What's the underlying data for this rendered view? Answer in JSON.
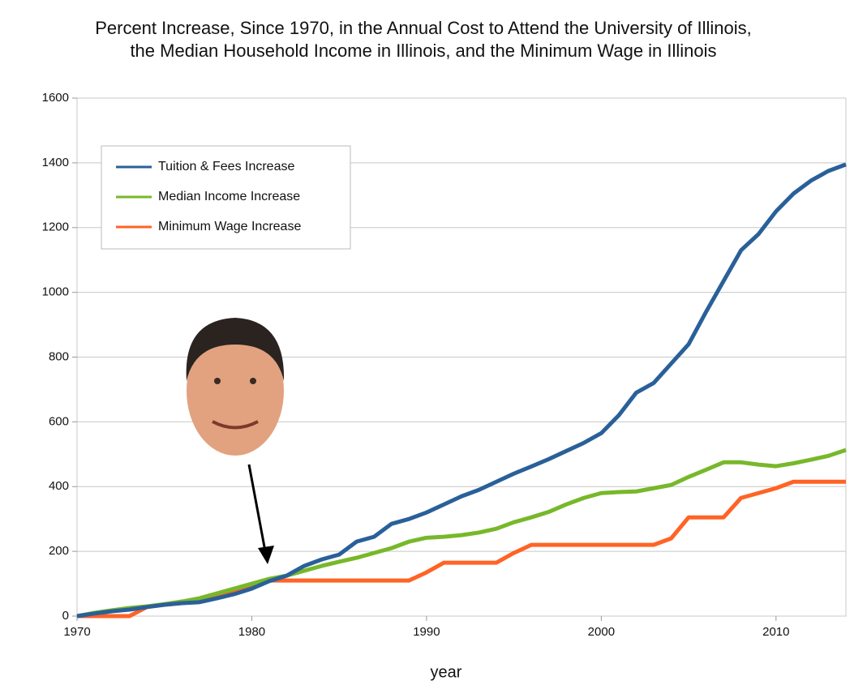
{
  "chart_data": {
    "type": "line",
    "title": [
      "Percent Increase, Since 1970, in the Annual Cost to Attend the University of Illinois,",
      "the Median Household Income in Illinois, and the Minimum Wage in Illinois"
    ],
    "x_label": "year",
    "x": [
      1970,
      1971,
      1972,
      1973,
      1974,
      1975,
      1976,
      1977,
      1978,
      1979,
      1980,
      1981,
      1982,
      1983,
      1984,
      1985,
      1986,
      1987,
      1988,
      1989,
      1990,
      1991,
      1992,
      1993,
      1994,
      1995,
      1996,
      1997,
      1998,
      1999,
      2000,
      2001,
      2002,
      2003,
      2004,
      2005,
      2006,
      2007,
      2008,
      2009,
      2010,
      2011,
      2012,
      2013,
      2014
    ],
    "xlim": [
      1970,
      2014
    ],
    "xticks": [
      1970,
      1980,
      1990,
      2000,
      2010
    ],
    "ylim": [
      0,
      1600
    ],
    "yticks": [
      0,
      200,
      400,
      600,
      800,
      1000,
      1200,
      1400,
      1600
    ],
    "grid": true,
    "legend": "upper-left",
    "series": [
      {
        "name": "Tuition & Fees Increase",
        "color": "#2a6099",
        "values": [
          0,
          8,
          15,
          20,
          28,
          35,
          40,
          43,
          55,
          68,
          85,
          108,
          125,
          155,
          175,
          190,
          230,
          245,
          285,
          300,
          320,
          345,
          370,
          390,
          415,
          440,
          462,
          485,
          510,
          535,
          565,
          620,
          690,
          720,
          780,
          840,
          940,
          1035,
          1130,
          1180,
          1250,
          1305,
          1345,
          1375,
          1395
        ]
      },
      {
        "name": "Median Income Increase",
        "color": "#77b82a",
        "values": [
          0,
          10,
          18,
          25,
          30,
          37,
          45,
          55,
          70,
          85,
          100,
          115,
          125,
          140,
          155,
          168,
          180,
          195,
          210,
          230,
          242,
          245,
          250,
          258,
          270,
          290,
          305,
          322,
          345,
          365,
          380,
          383,
          385,
          395,
          405,
          430,
          452,
          475,
          475,
          468,
          463,
          472,
          483,
          495,
          513
        ]
      },
      {
        "name": "Minimum Wage Increase",
        "color": "#ff6325",
        "values": [
          0,
          0,
          0,
          0,
          28,
          35,
          40,
          45,
          60,
          75,
          90,
          110,
          110,
          110,
          110,
          110,
          110,
          110,
          110,
          110,
          135,
          165,
          165,
          165,
          165,
          195,
          220,
          220,
          220,
          220,
          220,
          220,
          220,
          220,
          240,
          305,
          305,
          305,
          365,
          380,
          395,
          415,
          415,
          415,
          415
        ]
      }
    ]
  }
}
